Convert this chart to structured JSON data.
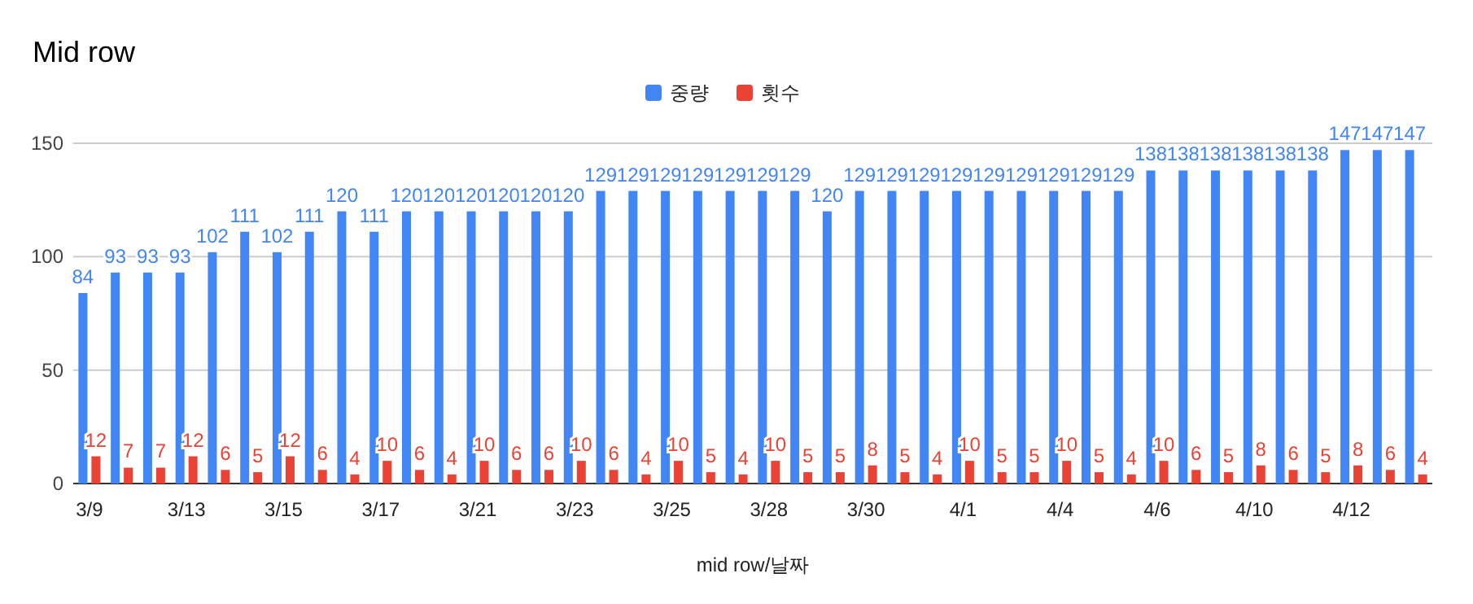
{
  "chart_data": {
    "type": "bar",
    "title": "Mid row",
    "xlabel": "mid row/날짜",
    "categories": [
      "3/9",
      null,
      null,
      "3/13",
      null,
      null,
      "3/15",
      null,
      null,
      "3/17",
      null,
      null,
      "3/21",
      null,
      null,
      "3/23",
      null,
      null,
      "3/25",
      null,
      null,
      "3/28",
      null,
      null,
      "3/30",
      null,
      null,
      "4/1",
      null,
      null,
      "4/4",
      null,
      null,
      "4/6",
      null,
      null,
      "4/10",
      null,
      null,
      "4/12",
      null,
      null
    ],
    "series": [
      {
        "name": "중량",
        "color": "#4285f4",
        "values": [
          84,
          93,
          93,
          93,
          102,
          111,
          102,
          111,
          120,
          111,
          120,
          120,
          120,
          120,
          120,
          120,
          129,
          129,
          129,
          129,
          129,
          129,
          129,
          120,
          129,
          129,
          129,
          129,
          129,
          129,
          129,
          129,
          129,
          138,
          138,
          138,
          138,
          138,
          138,
          147,
          147,
          147
        ]
      },
      {
        "name": "횟수",
        "color": "#ea4335",
        "values": [
          12,
          7,
          7,
          12,
          6,
          5,
          12,
          6,
          4,
          10,
          6,
          4,
          10,
          6,
          6,
          10,
          6,
          4,
          10,
          5,
          4,
          10,
          5,
          5,
          8,
          5,
          4,
          10,
          5,
          5,
          10,
          5,
          4,
          10,
          6,
          5,
          8,
          6,
          5,
          8,
          6,
          4
        ]
      }
    ],
    "ylim": [
      0,
      150
    ],
    "yticks": [
      0,
      50,
      100,
      150
    ],
    "grid": "y",
    "legend": "top",
    "data_labels": true
  }
}
